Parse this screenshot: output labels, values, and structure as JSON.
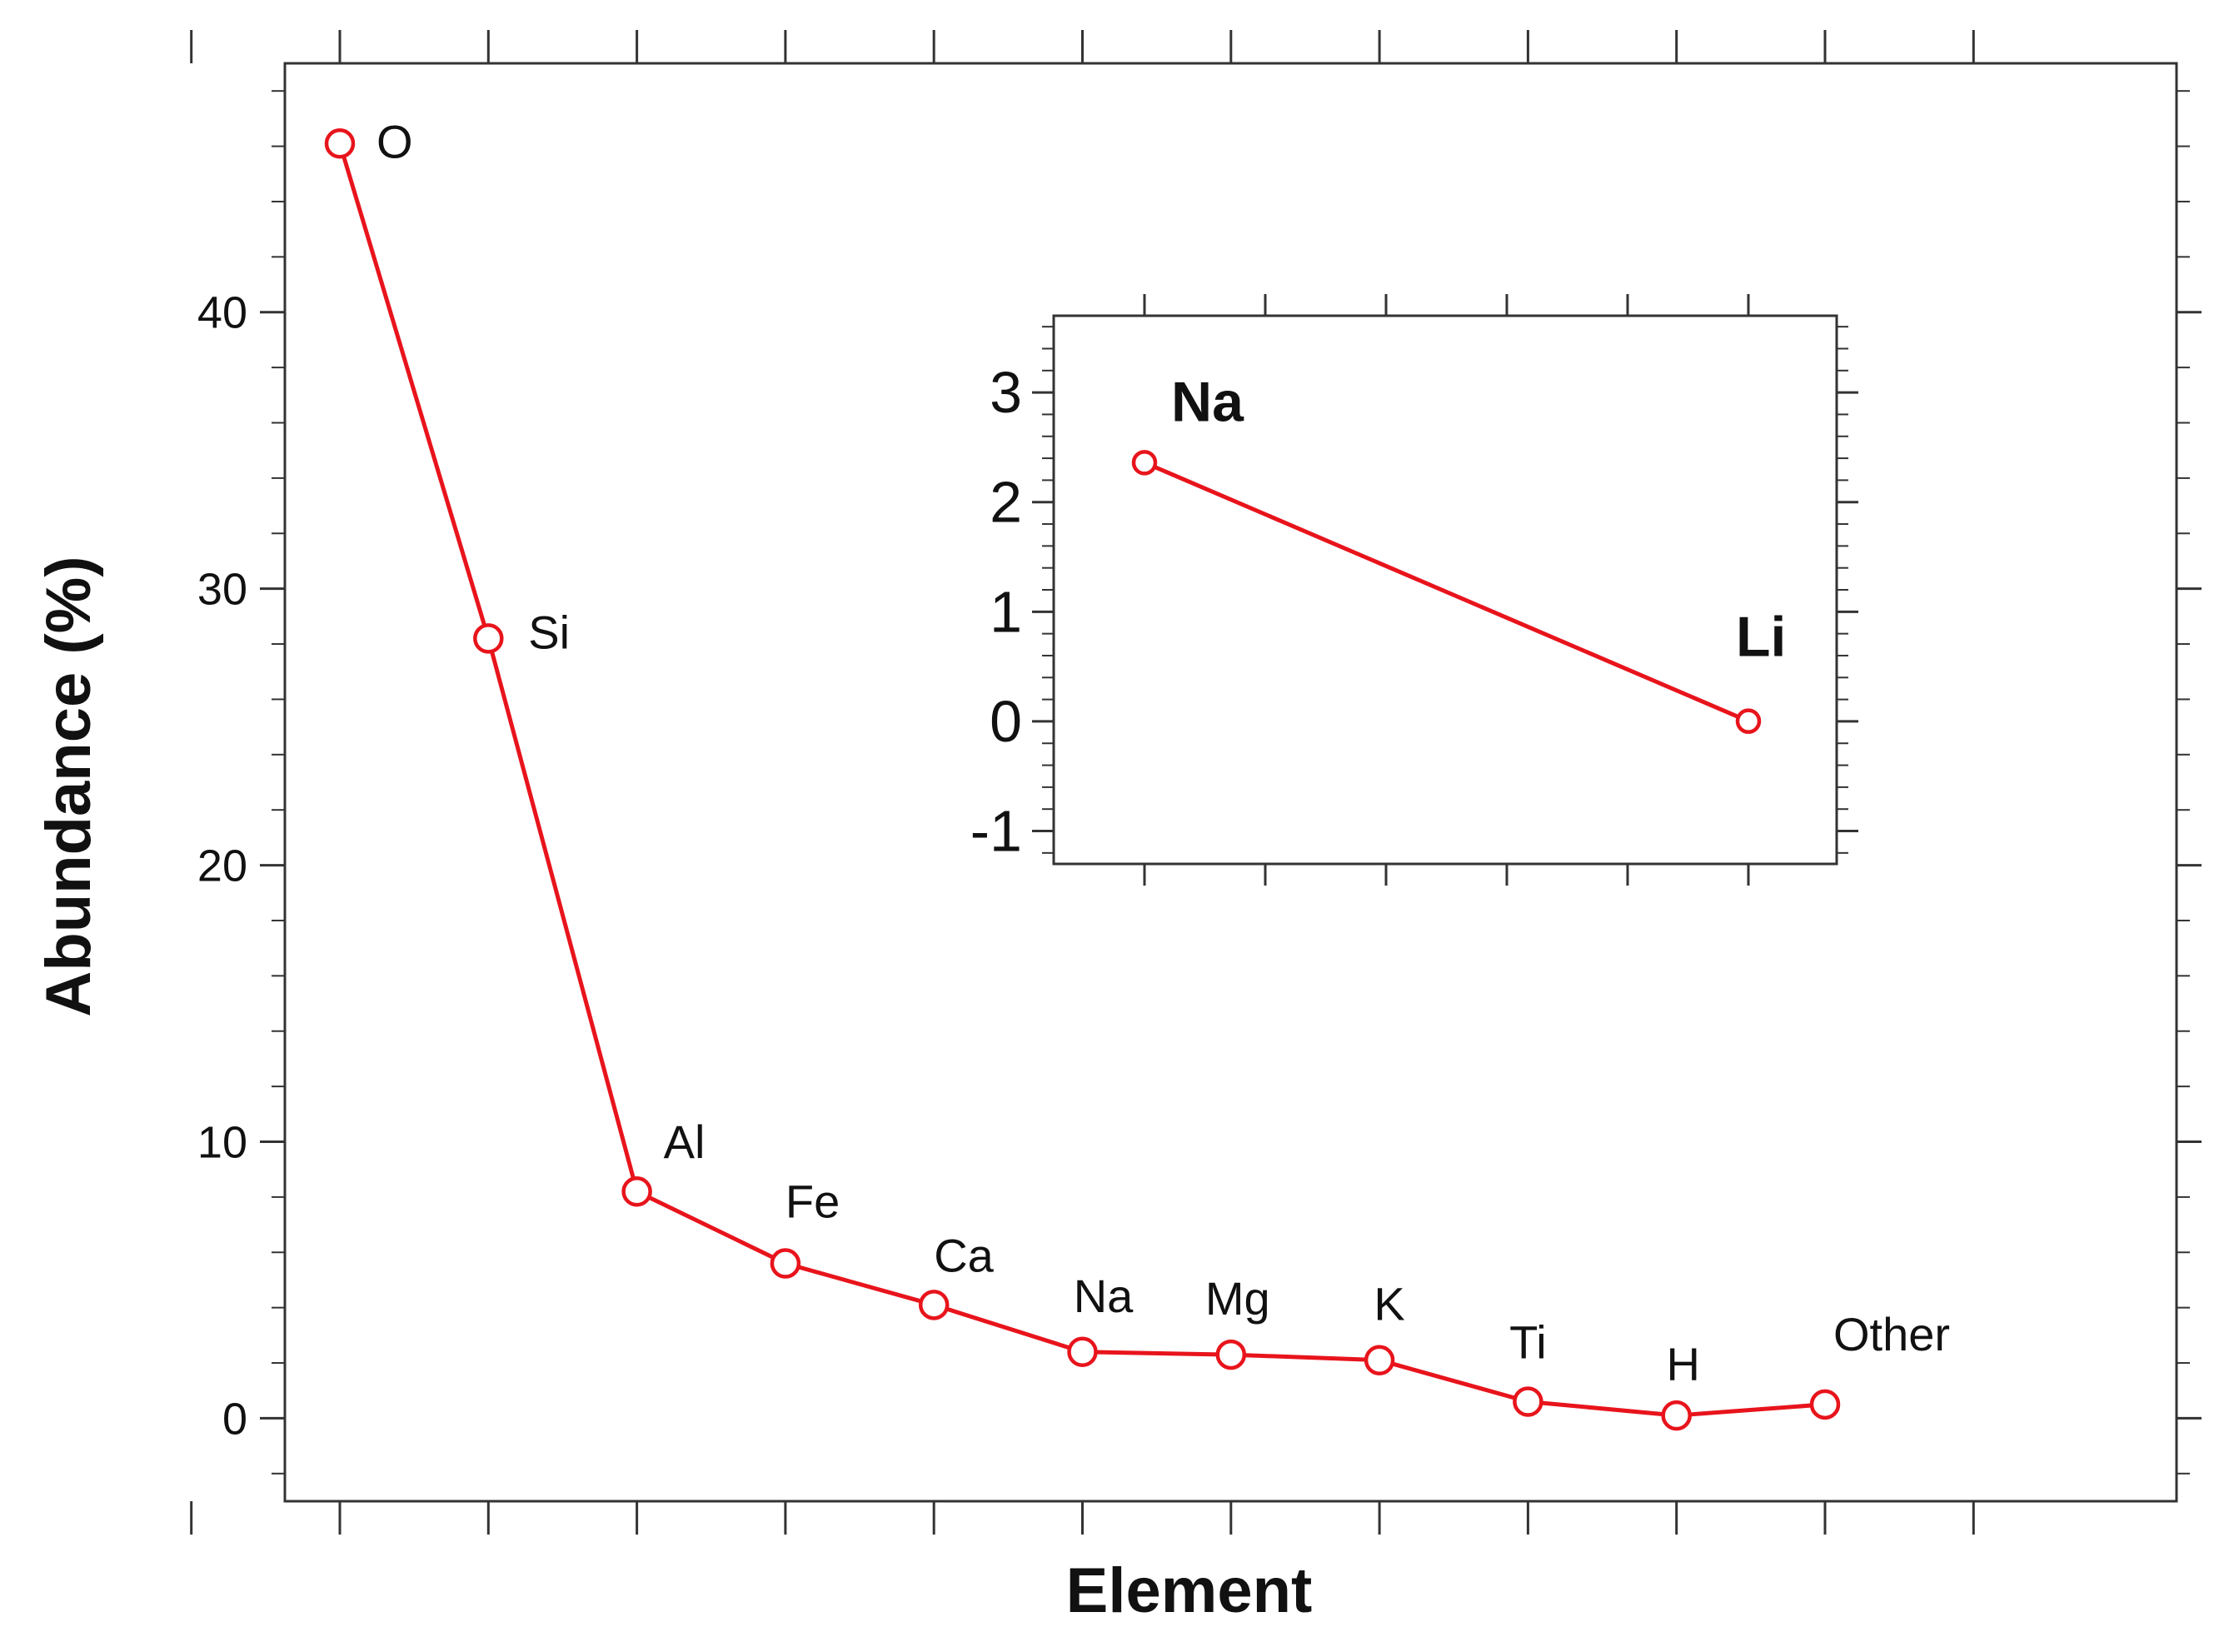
{
  "colors": {
    "series": "#e8141c",
    "axis": "#333333",
    "text": "#111111"
  },
  "chart_data": [
    {
      "type": "line",
      "role": "main",
      "xlabel": "Element",
      "ylabel": "Abundance (%)",
      "ylim": [
        -3,
        49
      ],
      "yticks": [
        0,
        10,
        20,
        30,
        40
      ],
      "ytick_labels": [
        "0",
        "10",
        "20",
        "30",
        "40"
      ],
      "grid": false,
      "legend": "none",
      "series": [
        {
          "points": [
            {
              "label": "O",
              "x": 1,
              "y": 46.1
            },
            {
              "label": "Si",
              "x": 2,
              "y": 28.2
            },
            {
              "label": "Al",
              "x": 3,
              "y": 8.2
            },
            {
              "label": "Fe",
              "x": 4,
              "y": 5.6
            },
            {
              "label": "Ca",
              "x": 5,
              "y": 4.1
            },
            {
              "label": "Na",
              "x": 6,
              "y": 2.4
            },
            {
              "label": "Mg",
              "x": 7,
              "y": 2.3
            },
            {
              "label": "K",
              "x": 8,
              "y": 2.1
            },
            {
              "label": "Ti",
              "x": 9,
              "y": 0.6
            },
            {
              "label": "H",
              "x": 10,
              "y": 0.1
            },
            {
              "label": "Other",
              "x": 11,
              "y": 0.5
            }
          ]
        }
      ]
    },
    {
      "type": "line",
      "role": "inset",
      "ylim": [
        -1.3,
        3.7
      ],
      "yticks": [
        -1,
        0,
        1,
        2,
        3
      ],
      "ytick_labels": [
        "-1",
        "0",
        "1",
        "2",
        "3"
      ],
      "grid": false,
      "legend": "none",
      "series": [
        {
          "points": [
            {
              "label": "Na",
              "x": 1,
              "y": 2.36
            },
            {
              "label": "Li",
              "x": 6,
              "y": 0.002
            }
          ]
        }
      ]
    }
  ]
}
